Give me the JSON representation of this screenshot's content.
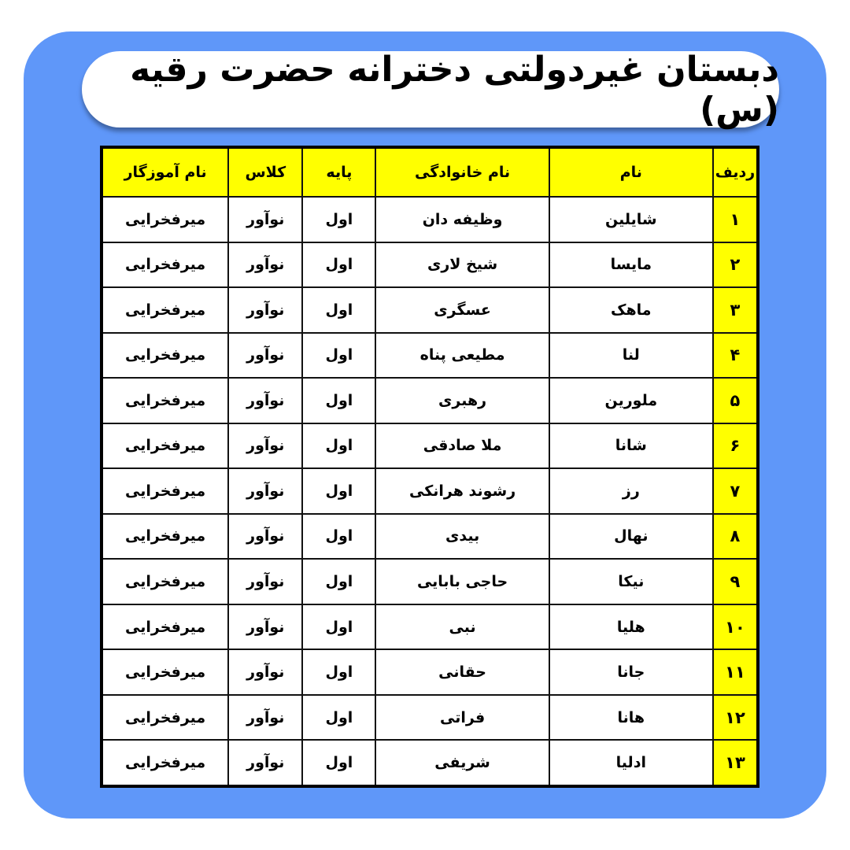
{
  "title": "دبستان غیردولتی دخترانه حضرت رقیه (س)",
  "colors": {
    "background": "#5f97f9",
    "header": "#ffff00"
  },
  "table": {
    "headers": [
      "ردیف",
      "نام",
      "نام خانوادگی",
      "پایه",
      "کلاس",
      "نام آموزگار"
    ],
    "rows": [
      [
        "۱",
        "شایلین",
        "وظیفه دان",
        "اول",
        "نوآور",
        "میرفخرایی"
      ],
      [
        "۲",
        "مایسا",
        "شیخ لاری",
        "اول",
        "نوآور",
        "میرفخرایی"
      ],
      [
        "۳",
        "ماهک",
        "عسگری",
        "اول",
        "نوآور",
        "میرفخرایی"
      ],
      [
        "۴",
        "لنا",
        "مطیعی پناه",
        "اول",
        "نوآور",
        "میرفخرایی"
      ],
      [
        "۵",
        "ملورین",
        "رهبری",
        "اول",
        "نوآور",
        "میرفخرایی"
      ],
      [
        "۶",
        "شانا",
        "ملا صادقی",
        "اول",
        "نوآور",
        "میرفخرایی"
      ],
      [
        "۷",
        "رز",
        "رشوند هرانکی",
        "اول",
        "نوآور",
        "میرفخرایی"
      ],
      [
        "۸",
        "نهال",
        "بیدی",
        "اول",
        "نوآور",
        "میرفخرایی"
      ],
      [
        "۹",
        "نیکا",
        "حاجی بابایی",
        "اول",
        "نوآور",
        "میرفخرایی"
      ],
      [
        "۱۰",
        "هلیا",
        "نبی",
        "اول",
        "نوآور",
        "میرفخرایی"
      ],
      [
        "۱۱",
        "جانا",
        "حقانی",
        "اول",
        "نوآور",
        "میرفخرایی"
      ],
      [
        "۱۲",
        "هانا",
        "فراتی",
        "اول",
        "نوآور",
        "میرفخرایی"
      ],
      [
        "۱۳",
        "ادلیا",
        "شریفی",
        "اول",
        "نوآور",
        "میرفخرایی"
      ]
    ]
  }
}
